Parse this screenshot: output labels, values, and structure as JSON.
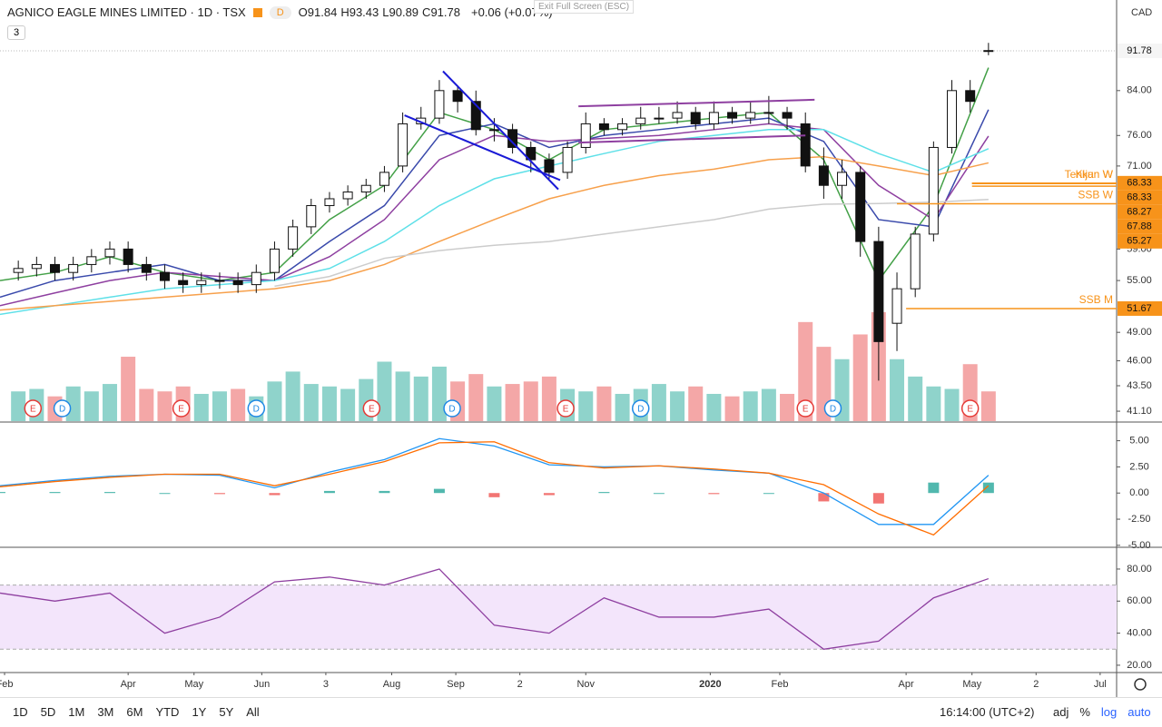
{
  "ui": {
    "title": "AGNICO EAGLE MINES LIMITED · 1D · TSX",
    "badge": "D",
    "ohlc_prefixes": [
      "O",
      "H",
      "L",
      "C"
    ],
    "change": "+0.06 (+0.07%)",
    "collapse": "3",
    "tooltip": "Exit Full Screen (ESC)",
    "currency": "CAD",
    "ranges": [
      "1D",
      "5D",
      "1M",
      "3M",
      "6M",
      "YTD",
      "1Y",
      "5Y",
      "All"
    ],
    "time": "16:14:00 (UTC+2)",
    "options": [
      "adj",
      "%",
      "log",
      "auto"
    ]
  },
  "chart_data": [
    {
      "type": "candlestick",
      "log": true,
      "xlim": [
        0,
        61
      ],
      "ylim": [
        40.2,
        102.8
      ],
      "xticks": [
        {
          "value": 0.25,
          "label": "Feb"
        },
        {
          "value": 7.0,
          "label": "Apr"
        },
        {
          "value": 10.6,
          "label": "May"
        },
        {
          "value": 14.3,
          "label": "Jun"
        },
        {
          "value": 17.8,
          "label": "3"
        },
        {
          "value": 21.4,
          "label": "Aug"
        },
        {
          "value": 24.9,
          "label": "Sep"
        },
        {
          "value": 28.4,
          "label": "2"
        },
        {
          "value": 32.0,
          "label": "Nov"
        },
        {
          "value": 38.8,
          "label": "2020"
        },
        {
          "value": 42.6,
          "label": "Feb"
        },
        {
          "value": 49.5,
          "label": "Apr"
        },
        {
          "value": 53.1,
          "label": "May"
        },
        {
          "value": 56.6,
          "label": "2"
        },
        {
          "value": 60.1,
          "label": "Jul"
        }
      ],
      "yticks": [
        {
          "value": 41.1,
          "label": "41.10"
        },
        {
          "value": 43.5,
          "label": "43.50"
        },
        {
          "value": 46,
          "label": "46.00"
        },
        {
          "value": 49,
          "label": "49.00"
        },
        {
          "value": 55,
          "label": "55.00"
        },
        {
          "value": 59,
          "label": "59.00"
        },
        {
          "value": 71,
          "label": "71.00"
        },
        {
          "value": 76,
          "label": "76.00"
        },
        {
          "value": 84,
          "label": "84.00"
        }
      ],
      "up_color": "#ffffff",
      "down_color": "#111111",
      "x": [
        1,
        2,
        3,
        4,
        5,
        6,
        7,
        8,
        9,
        10,
        11,
        12,
        13,
        14,
        15,
        16,
        17,
        18,
        19,
        20,
        21,
        22,
        23,
        24,
        25,
        26,
        27,
        28,
        29,
        30,
        31,
        32,
        33,
        34,
        35,
        36,
        37,
        38,
        39,
        40,
        41,
        42,
        43,
        44,
        45,
        46,
        47,
        48,
        49,
        50,
        51,
        52,
        53,
        54
      ],
      "open": [
        56,
        56.5,
        57,
        56,
        57,
        58,
        59,
        57,
        56,
        55,
        54.5,
        55,
        55,
        54.5,
        56,
        59,
        62,
        65,
        66,
        67,
        68,
        71,
        78,
        79,
        84,
        82,
        77,
        77,
        74,
        72,
        70,
        74,
        78,
        77,
        78,
        79,
        79,
        80,
        78,
        80,
        79,
        80,
        80,
        78,
        71,
        68,
        70,
        60,
        50,
        54,
        61,
        74,
        84,
        91.84
      ],
      "high": [
        57.5,
        58,
        58,
        58,
        59,
        60,
        60,
        58,
        57,
        56,
        56,
        56,
        56,
        57,
        60,
        63,
        66,
        67,
        68,
        69,
        71,
        80,
        81,
        86,
        85,
        84,
        79,
        78,
        75,
        73,
        75,
        80,
        79,
        79,
        81,
        81,
        82,
        81,
        82,
        81,
        82,
        83,
        81,
        80,
        74,
        72,
        71,
        62,
        56,
        62,
        75,
        86,
        86,
        93.43
      ],
      "low": [
        55,
        55.5,
        55,
        55,
        56,
        57,
        56,
        55,
        54,
        53.5,
        53.5,
        54,
        53.5,
        53.5,
        55,
        58,
        61,
        64,
        65,
        66,
        67,
        70,
        77,
        78,
        80,
        76,
        75,
        73,
        70,
        69,
        69,
        73,
        76,
        76,
        77,
        78,
        78,
        77,
        77,
        78,
        78,
        78,
        77,
        70,
        66,
        66,
        58,
        44,
        47,
        53,
        60,
        73,
        80,
        90.89
      ],
      "close": [
        56.5,
        57,
        56,
        57,
        58,
        59,
        57,
        56,
        55,
        54.5,
        55,
        55,
        54.5,
        56,
        59,
        62,
        65,
        66,
        67,
        68,
        70,
        78,
        79,
        84,
        82,
        77,
        77,
        74,
        72,
        70,
        74,
        78,
        77,
        78,
        79,
        79,
        80,
        78,
        80,
        79,
        80,
        80,
        79,
        71,
        68,
        70,
        60,
        48,
        54,
        61,
        74,
        84,
        82,
        91.78
      ],
      "volume": [
        1.2,
        1.3,
        1.0,
        1.4,
        1.2,
        1.5,
        2.6,
        1.3,
        1.2,
        1.4,
        1.1,
        1.2,
        1.3,
        1.0,
        1.6,
        2.0,
        1.5,
        1.4,
        1.3,
        1.7,
        2.4,
        2.0,
        1.8,
        2.2,
        1.6,
        1.9,
        1.4,
        1.5,
        1.6,
        1.8,
        1.3,
        1.2,
        1.4,
        1.1,
        1.3,
        1.5,
        1.2,
        1.4,
        1.1,
        1.0,
        1.2,
        1.3,
        1.1,
        4.0,
        3.0,
        2.5,
        3.5,
        4.4,
        2.5,
        1.8,
        1.4,
        1.3,
        2.3,
        1.2
      ],
      "volume_lim": [
        0,
        17
      ],
      "volume_up_color": "#8fd3cb",
      "volume_down_color": "#f4a7a7",
      "overlay_x": [
        0,
        3,
        6,
        9,
        12,
        15,
        18,
        21,
        24,
        27,
        30,
        33,
        36,
        39,
        42,
        45,
        48,
        51,
        54
      ],
      "overlays": [
        {
          "color": "#43a047",
          "values": [
            55,
            56,
            58,
            56,
            55,
            56,
            63,
            68,
            80,
            77,
            72,
            77,
            78,
            79,
            80,
            72,
            55,
            65,
            88.4
          ]
        },
        {
          "color": "#3949ab",
          "values": [
            53,
            55,
            56,
            57,
            55,
            55,
            60,
            65,
            76,
            78,
            74,
            76,
            77,
            78,
            79,
            75,
            63,
            62,
            80.5
          ]
        },
        {
          "color": "#8e3fa0",
          "values": [
            52,
            53.5,
            55,
            56,
            55.5,
            55,
            58,
            63,
            72,
            76,
            75,
            75.5,
            76,
            77,
            78,
            77,
            68,
            63,
            75.9
          ]
        },
        {
          "color": "#5ee0e8",
          "values": [
            51,
            52,
            53,
            54,
            54.5,
            55,
            56.5,
            60,
            65,
            69,
            71,
            73,
            75,
            76,
            77,
            77,
            73,
            70,
            73.8
          ]
        },
        {
          "color": "#f7a04b",
          "values": [
            51.5,
            52,
            52.5,
            53,
            53.5,
            54,
            55,
            57,
            60,
            63,
            66,
            68,
            69.5,
            70.5,
            72,
            72.5,
            71,
            69.5,
            71.5
          ]
        },
        {
          "color": "#cccccc",
          "values": [
            null,
            null,
            null,
            null,
            null,
            54.3,
            55.5,
            57.8,
            58.8,
            59.5,
            60,
            61,
            62,
            63,
            64.5,
            65.2,
            65.3,
            65.5,
            65.9
          ]
        }
      ],
      "drawings": [
        {
          "color": "#1a1ad6",
          "x": [
            24.2,
            30.5
          ],
          "y": [
            87.7,
            67.4
          ]
        },
        {
          "color": "#1a1ad6",
          "x": [
            22.1,
            30.6
          ],
          "y": [
            79.5,
            68.8
          ]
        },
        {
          "color": "#8e3fa0",
          "x": [
            31.6,
            44.5
          ],
          "y": [
            81.1,
            82.3
          ]
        },
        {
          "color": "#8e3fa0",
          "x": [
            31.6,
            44.0
          ],
          "y": [
            74.8,
            76.0
          ]
        }
      ],
      "levels": [
        {
          "name": "Tenkan W",
          "value": 68.33,
          "from": 53.1
        },
        {
          "name": "Kijun W",
          "value": 68.33,
          "from": 53.1
        },
        {
          "value": 68.27,
          "from": 53.1
        },
        {
          "value": 67.88,
          "from": 53.1
        },
        {
          "name": "SSB W",
          "value": 65.27,
          "from": 49.0
        },
        {
          "name": "SSB M",
          "value": 51.67,
          "from": 49.5
        }
      ],
      "level_color": "#f7931a",
      "events": [
        {
          "label": "E",
          "x": 1.8
        },
        {
          "label": "D",
          "x": 3.4
        },
        {
          "label": "E",
          "x": 9.9
        },
        {
          "label": "D",
          "x": 14.0
        },
        {
          "label": "E",
          "x": 20.3
        },
        {
          "label": "D",
          "x": 24.7
        },
        {
          "label": "E",
          "x": 30.9
        },
        {
          "label": "D",
          "x": 35.0
        },
        {
          "label": "E",
          "x": 44.0
        },
        {
          "label": "D",
          "x": 45.5
        },
        {
          "label": "E",
          "x": 53.0
        }
      ],
      "event_colors": {
        "E": "#e53935",
        "D": "#1e88e5"
      }
    },
    {
      "type": "macd",
      "ylim": [
        -5.1,
        6.7
      ],
      "yticks": [
        {
          "value": 5,
          "label": "5.00"
        },
        {
          "value": 2.5,
          "label": "2.50"
        },
        {
          "value": 0,
          "label": "0.00"
        },
        {
          "value": -2.5,
          "label": "-2.50"
        },
        {
          "value": -5,
          "label": "-5.00"
        }
      ],
      "x": [
        0,
        3,
        6,
        9,
        12,
        15,
        18,
        21,
        24,
        27,
        30,
        33,
        36,
        39,
        42,
        45,
        48,
        51,
        54
      ],
      "series": [
        {
          "color": "#2196f3",
          "values": [
            0.7,
            1.2,
            1.6,
            1.8,
            1.7,
            0.5,
            2.0,
            3.2,
            5.2,
            4.5,
            2.7,
            2.5,
            2.6,
            2.2,
            1.9,
            0.0,
            -3.0,
            -3.0,
            1.7
          ]
        },
        {
          "color": "#ff6d00",
          "values": [
            0.6,
            1.1,
            1.5,
            1.8,
            1.8,
            0.7,
            1.8,
            3.0,
            4.8,
            4.9,
            2.9,
            2.4,
            2.6,
            2.3,
            1.9,
            0.8,
            -2.0,
            -4.0,
            0.7
          ]
        }
      ],
      "histogram": {
        "values": [
          0.1,
          0.1,
          0.1,
          0,
          -0.1,
          -0.2,
          0.2,
          0.2,
          0.4,
          -0.4,
          -0.2,
          0.1,
          0,
          -0.1,
          0,
          -0.8,
          -1.0,
          1.0,
          1.0
        ],
        "up_color": "#26a69a",
        "down_color": "#ef5350"
      }
    },
    {
      "type": "rsi",
      "ylim": [
        16,
        93
      ],
      "yticks": [
        {
          "value": 80,
          "label": "80.00"
        },
        {
          "value": 60,
          "label": "60.00"
        },
        {
          "value": 40,
          "label": "40.00"
        },
        {
          "value": 20,
          "label": "20.00"
        }
      ],
      "bands": [
        70,
        30
      ],
      "band_color": "#f3e5fb",
      "x": [
        0,
        3,
        6,
        9,
        12,
        15,
        18,
        21,
        24,
        27,
        30,
        33,
        36,
        39,
        42,
        45,
        48,
        51,
        54
      ],
      "series": [
        {
          "color": "#8e3fa0",
          "values": [
            65,
            60,
            65,
            40,
            50,
            72,
            75,
            70,
            80,
            45,
            40,
            62,
            50,
            50,
            55,
            30,
            35,
            62,
            74
          ]
        }
      ]
    }
  ]
}
